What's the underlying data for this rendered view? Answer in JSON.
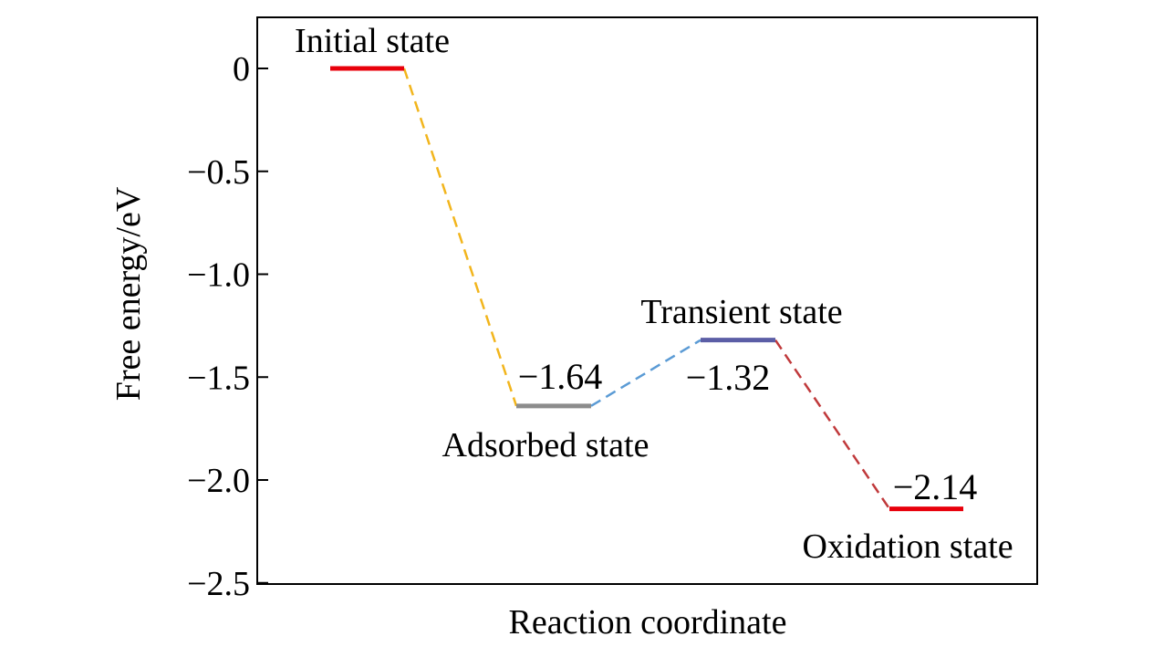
{
  "chart_data": {
    "type": "line",
    "title": "",
    "xlabel": "Reaction coordinate",
    "ylabel": "Free energy/eV",
    "ylim": [
      -2.5,
      0.25
    ],
    "yticks": [
      0,
      -0.5,
      -1.0,
      -1.5,
      -2.0,
      -2.5
    ],
    "ytick_labels": [
      "0",
      "−0.5",
      "−1.0",
      "−1.5",
      "−2.0",
      "−2.5"
    ],
    "grid": false,
    "legend": "none",
    "states": [
      {
        "name": "Initial state",
        "energy": 0,
        "value_label": "",
        "color": "#e8000b"
      },
      {
        "name": "Adsorbed state",
        "energy": -1.64,
        "value_label": "−1.64",
        "color": "#8c8c8c"
      },
      {
        "name": "Transient state",
        "energy": -1.32,
        "value_label": "−1.32",
        "color": "#5b5ea6"
      },
      {
        "name": "Oxidation state",
        "energy": -2.14,
        "value_label": "−2.14",
        "color": "#e8000b"
      }
    ],
    "connectors": [
      {
        "from": "Initial state",
        "to": "Adsorbed state",
        "color": "#f2b51c"
      },
      {
        "from": "Adsorbed state",
        "to": "Transient state",
        "color": "#5b9bd5"
      },
      {
        "from": "Transient state",
        "to": "Oxidation state",
        "color": "#c0393b"
      }
    ]
  }
}
